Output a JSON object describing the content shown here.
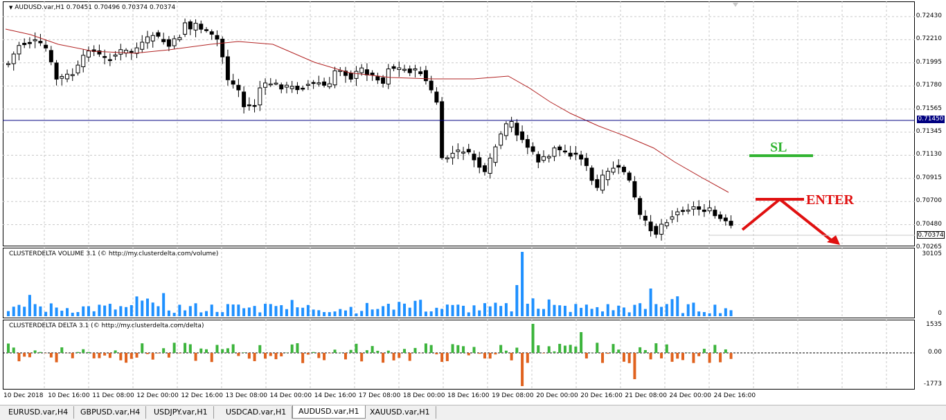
{
  "main_panel": {
    "title": "AUDUSD.var,H1  0.70451 0.70496 0.70374 0.70374",
    "price_labels": [
      "0.72430",
      "0.72210",
      "0.71995",
      "0.71780",
      "0.71565",
      "0.71345",
      "0.71130",
      "0.70915",
      "0.70700",
      "0.70480",
      "0.70265"
    ],
    "hline_label": "0.71450",
    "current_price_label": "0.70374",
    "annotations": {
      "sl": "SL",
      "enter": "ENTER"
    }
  },
  "volume_panel": {
    "title": "CLUSTERDELTA VOLUME 3.1 (© http://my.clusterdelta.com/volume)",
    "axis_labels": [
      "30105",
      "0"
    ]
  },
  "delta_panel": {
    "title": "CLUSTERDELTA DELTA 3.1 (© http://my.clusterdelta.com/delta)",
    "axis_labels": [
      "1535",
      "0.00",
      "-1773"
    ]
  },
  "time_axis": [
    "10 Dec 2018",
    "10 Dec 16:00",
    "11 Dec 08:00",
    "12 Dec 00:00",
    "12 Dec 16:00",
    "13 Dec 08:00",
    "14 Dec 00:00",
    "14 Dec 16:00",
    "17 Dec 08:00",
    "18 Dec 00:00",
    "18 Dec 16:00",
    "19 Dec 08:00",
    "20 Dec 00:00",
    "20 Dec 16:00",
    "21 Dec 08:00",
    "24 Dec 00:00",
    "24 Dec 16:00"
  ],
  "tabs": [
    {
      "label": "EURUSD.var,H4",
      "active": false
    },
    {
      "label": "GBPUSD.var,H4",
      "active": false
    },
    {
      "label": "USDJPY.var,H1",
      "active": false
    },
    {
      "label": "USDCAD.var,H1",
      "active": false
    },
    {
      "label": "AUDUSD.var,H1",
      "active": true
    },
    {
      "label": "XAUUSD.var,H1",
      "active": false
    }
  ],
  "colors": {
    "ma_line": "#b22222",
    "hline": "#000080",
    "sl": "#32b432",
    "enter": "#e01010",
    "volume": "#1e90ff",
    "delta_pos": "#3cb43c",
    "delta_neg": "#e0621e"
  }
}
